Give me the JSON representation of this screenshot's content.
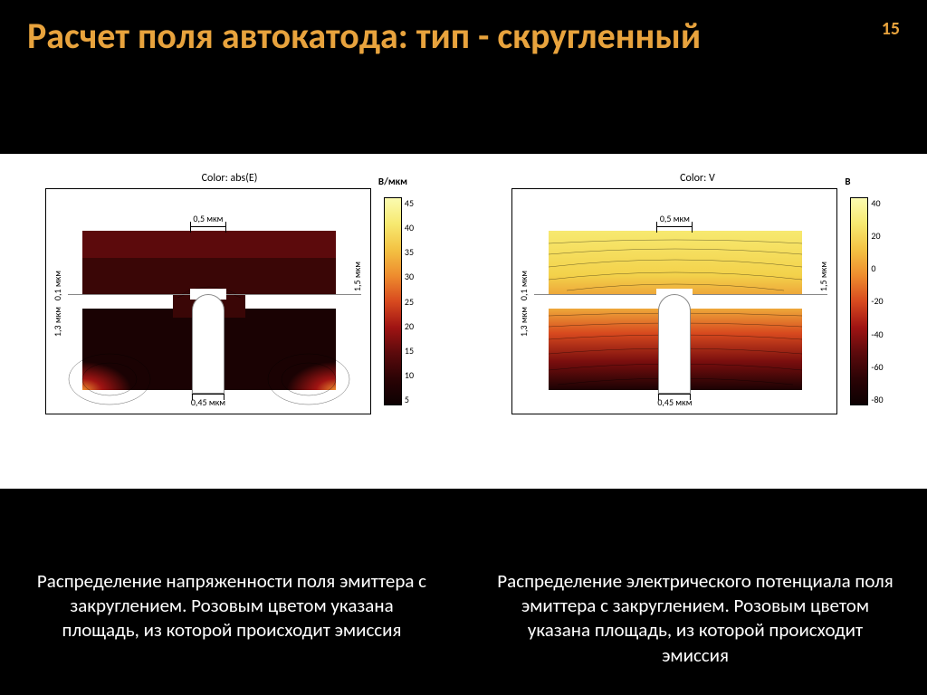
{
  "page_number": "15",
  "title": "Расчет поля автокатода: тип - скругленный",
  "left_chart": {
    "type": "heatmap",
    "title": "Color: abs(E)",
    "colorbar": {
      "unit": "В/мкм",
      "ticks": [
        "45",
        "40",
        "35",
        "30",
        "25",
        "20",
        "15",
        "10",
        "5"
      ],
      "range": [
        5,
        45
      ],
      "gradient": [
        "#fbfbb0",
        "#f7e970",
        "#f3c243",
        "#ee8c2e",
        "#d84a1f",
        "#a01413",
        "#5c0a0c",
        "#2b0305",
        "#0d0102"
      ]
    },
    "dimensions": {
      "top": "0,5 мкм",
      "bottom": "0,45 мкм",
      "left_upper": "0,1 мкм",
      "left_lower": "1,3 мкм",
      "right": "1,5 мкм"
    },
    "caption": "Распределение напряженности поля эмиттера с закруглением. Розовым цветом указана площадь, из которой происходит эмиссия"
  },
  "right_chart": {
    "type": "heatmap",
    "title": "Color: V",
    "colorbar": {
      "unit": "В",
      "ticks": [
        "40",
        "20",
        "0",
        "-20",
        "-40",
        "-60",
        "-80"
      ],
      "range": [
        -80,
        40
      ],
      "gradient": [
        "#fbfbb0",
        "#f7e970",
        "#f3c243",
        "#ee8c2e",
        "#d84a1f",
        "#a01413",
        "#5c0a0c",
        "#2b0305",
        "#0d0102"
      ]
    },
    "dimensions": {
      "top": "0,5 мкм",
      "bottom": "0,45 мкм",
      "left_upper": "0,1 мкм",
      "left_lower": "1,3 мкм",
      "right": "1,5 мкм"
    },
    "caption": "Распределение электрического потенциала поля эмиттера с закруглением. Розовым цветом указана площадь, из которой происходит эмиссия"
  },
  "palette": {
    "title_color": "#e8a33d",
    "background": "#000000",
    "panel": "#ffffff"
  }
}
